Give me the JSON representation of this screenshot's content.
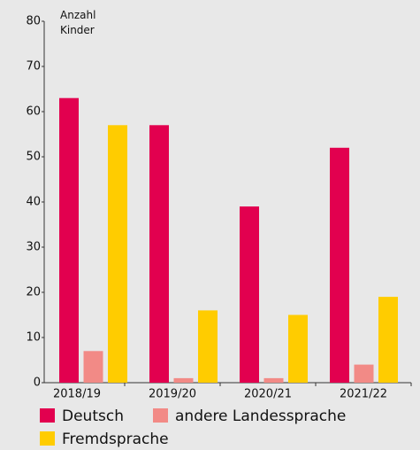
{
  "chart_data": {
    "type": "bar",
    "y_label": "Anzahl Kinder",
    "categories": [
      "2018/19",
      "2019/20",
      "2020/21",
      "2021/22"
    ],
    "series": [
      {
        "name": "Deutsch",
        "color": "#e2004f",
        "values": [
          63,
          57,
          39,
          52
        ]
      },
      {
        "name": "andere Landessprache",
        "color": "#f28a86",
        "values": [
          7,
          1,
          1,
          4
        ]
      },
      {
        "name": "Fremdsprache",
        "color": "#ffcc00",
        "values": [
          57,
          16,
          15,
          19
        ]
      }
    ],
    "ylim": [
      0,
      80
    ],
    "yticks": [
      0,
      10,
      20,
      30,
      40,
      50,
      60,
      70,
      80
    ],
    "grid": false
  }
}
